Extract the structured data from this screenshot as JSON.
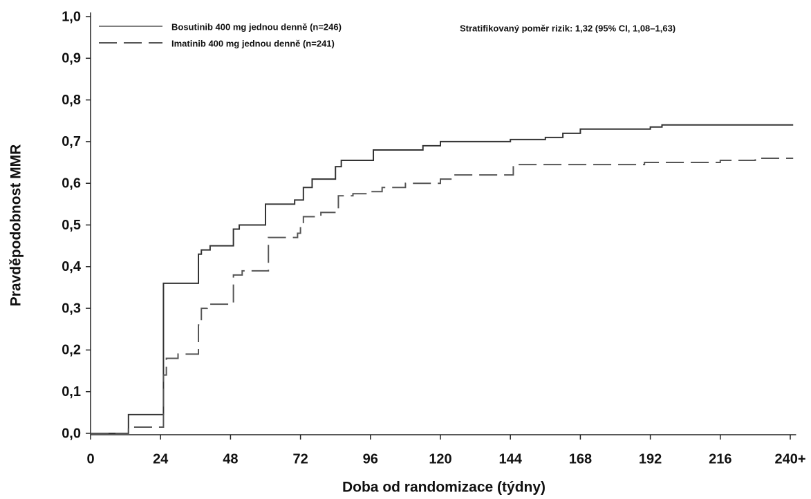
{
  "chart_data": {
    "type": "line",
    "step": true,
    "ylabel": "Pravděpodobnost MMR",
    "xlabel": "Doba od randomizace (týdny)",
    "annotation": "Stratifikovaný poměr rizik: 1,32 (95% CI, 1,08–1,63)",
    "xlim": [
      0,
      242
    ],
    "ylim": [
      0,
      1
    ],
    "xticks": [
      0,
      24,
      48,
      72,
      96,
      120,
      144,
      168,
      192,
      216,
      {
        "value": 240,
        "label": "240+"
      }
    ],
    "yticks": [
      {
        "value": 0,
        "label": "0,0"
      },
      {
        "value": 0.1,
        "label": "0,1"
      },
      {
        "value": 0.2,
        "label": "0,2"
      },
      {
        "value": 0.3,
        "label": "0,3"
      },
      {
        "value": 0.4,
        "label": "0,4"
      },
      {
        "value": 0.5,
        "label": "0,5"
      },
      {
        "value": 0.6,
        "label": "0,6"
      },
      {
        "value": 0.7,
        "label": "0,7"
      },
      {
        "value": 0.8,
        "label": "0,8"
      },
      {
        "value": 0.9,
        "label": "0,9"
      },
      {
        "value": 1,
        "label": "1,0"
      }
    ],
    "series": [
      {
        "name": "Bosutinib 400 mg jednou denně (n=246)",
        "color": "#333333",
        "dash": "solid",
        "x": [
          0,
          13,
          25,
          37,
          38,
          41,
          49,
          51,
          60,
          70,
          73,
          76,
          84,
          86,
          97,
          114,
          120,
          144,
          156,
          162,
          168,
          192,
          196,
          241
        ],
        "values": [
          0,
          0.045,
          0.36,
          0.43,
          0.44,
          0.45,
          0.49,
          0.5,
          0.55,
          0.56,
          0.59,
          0.61,
          0.64,
          0.655,
          0.68,
          0.69,
          0.7,
          0.705,
          0.71,
          0.72,
          0.73,
          0.735,
          0.74,
          0.74
        ]
      },
      {
        "name": "Imatinib 400 mg jednou denně (n=241)",
        "color": "#555555",
        "dash": "dashed",
        "x": [
          0,
          13,
          25,
          26,
          30,
          37,
          38,
          40,
          49,
          52,
          61,
          71,
          72,
          73,
          79,
          85,
          90,
          96,
          100,
          108,
          120,
          124,
          145,
          190,
          216,
          228,
          241
        ],
        "values": [
          0,
          0.015,
          0.14,
          0.18,
          0.19,
          0.26,
          0.3,
          0.31,
          0.38,
          0.39,
          0.47,
          0.48,
          0.5,
          0.52,
          0.53,
          0.57,
          0.575,
          0.58,
          0.59,
          0.6,
          0.61,
          0.62,
          0.645,
          0.65,
          0.655,
          0.66,
          0.66
        ]
      }
    ]
  }
}
